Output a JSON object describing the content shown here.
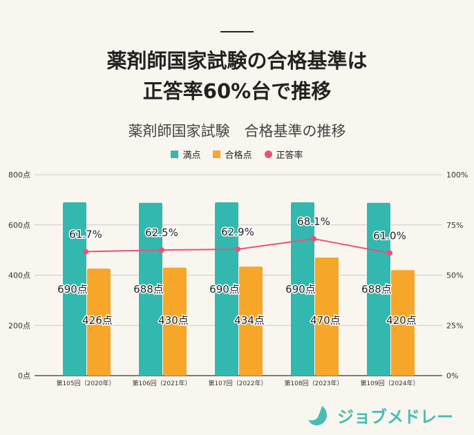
{
  "headline": {
    "line1": "薬剤師国家試験の合格基準は",
    "line2": "正答率60%台で推移"
  },
  "brand": {
    "name": "ジョブメドレー"
  },
  "chart_data": {
    "type": "bar+line",
    "title": "薬剤師国家試験　合格基準の推移",
    "categories": [
      "第105回（2020年）",
      "第106回（2021年）",
      "第107回（2022年）",
      "第108回（2023年）",
      "第109回（2024年）"
    ],
    "series": [
      {
        "name": "満点",
        "type": "bar",
        "axis": "left",
        "color": "#33b8b0",
        "values": [
          690,
          688,
          690,
          690,
          688
        ],
        "labels": [
          "690点",
          "688点",
          "690点",
          "690点",
          "688点"
        ]
      },
      {
        "name": "合格点",
        "type": "bar",
        "axis": "left",
        "color": "#f6a629",
        "values": [
          426,
          430,
          434,
          470,
          420
        ],
        "labels": [
          "426点",
          "430点",
          "434点",
          "470点",
          "420点"
        ]
      },
      {
        "name": "正答率",
        "type": "line",
        "axis": "right",
        "color": "#f04e78",
        "values": [
          61.7,
          62.5,
          62.9,
          68.1,
          61.0
        ],
        "labels": [
          "61.7%",
          "62.5%",
          "62.9%",
          "68.1%",
          "61.0%"
        ]
      }
    ],
    "y_left": {
      "range": [
        0,
        800
      ],
      "ticks": [
        "0点",
        "200点",
        "400点",
        "600点",
        "800点"
      ]
    },
    "y_right": {
      "range": [
        0,
        100
      ],
      "ticks": [
        "0%",
        "25%",
        "50%",
        "75%",
        "100%"
      ]
    },
    "grid": true,
    "legend": "top"
  }
}
